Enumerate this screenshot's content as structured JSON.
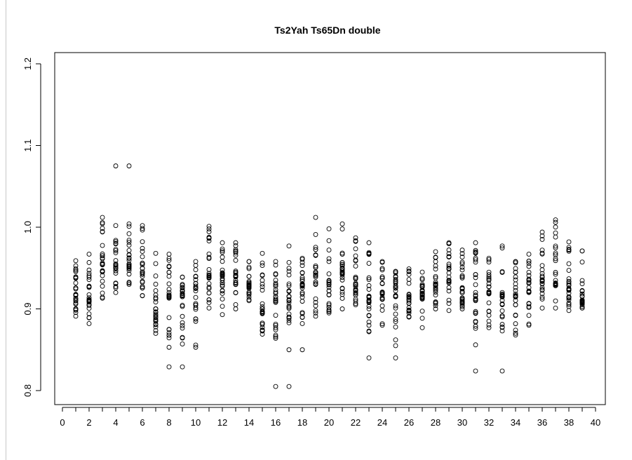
{
  "chart_data": {
    "type": "scatter",
    "title": "Ts2Yah Ts65Dn double",
    "xlabel": "",
    "ylabel": "",
    "xlim": [
      0,
      40
    ],
    "ylim": [
      0.8,
      1.2
    ],
    "x_ticks": [
      0,
      2,
      4,
      6,
      8,
      10,
      12,
      14,
      16,
      18,
      20,
      22,
      24,
      26,
      28,
      30,
      32,
      34,
      36,
      38,
      40
    ],
    "y_ticks": [
      0.8,
      0.9,
      1.0,
      1.1,
      1.2
    ],
    "y_tick_labels": [
      "0.8",
      "0.9",
      "1.0",
      "1.1",
      "1.2"
    ],
    "marker": "open-circle",
    "grid": false,
    "legend": "none",
    "groups": [
      {
        "x": 1,
        "min": 0.891,
        "max": 0.959,
        "center": 0.917,
        "outliers": []
      },
      {
        "x": 2,
        "min": 0.882,
        "max": 0.967,
        "center": 0.91,
        "outliers": []
      },
      {
        "x": 3,
        "min": 0.913,
        "max": 1.012,
        "center": 0.955,
        "outliers": []
      },
      {
        "x": 4,
        "min": 0.92,
        "max": 1.002,
        "center": 0.95,
        "outliers": [
          1.075
        ]
      },
      {
        "x": 5,
        "min": 0.93,
        "max": 1.004,
        "center": 0.955,
        "outliers": [
          1.075
        ]
      },
      {
        "x": 6,
        "min": 0.916,
        "max": 1.002,
        "center": 0.945,
        "outliers": []
      },
      {
        "x": 7,
        "min": 0.87,
        "max": 0.968,
        "center": 0.9,
        "outliers": []
      },
      {
        "x": 8,
        "min": 0.853,
        "max": 0.967,
        "center": 0.915,
        "outliers": [
          0.829
        ]
      },
      {
        "x": 9,
        "min": 0.857,
        "max": 0.939,
        "center": 0.915,
        "outliers": [
          0.829
        ]
      },
      {
        "x": 10,
        "min": 0.853,
        "max": 0.958,
        "center": 0.925,
        "outliers": []
      },
      {
        "x": 11,
        "min": 0.901,
        "max": 1.001,
        "center": 0.94,
        "outliers": []
      },
      {
        "x": 12,
        "min": 0.893,
        "max": 0.981,
        "center": 0.935,
        "outliers": []
      },
      {
        "x": 13,
        "min": 0.9,
        "max": 0.981,
        "center": 0.94,
        "outliers": []
      },
      {
        "x": 14,
        "min": 0.91,
        "max": 0.958,
        "center": 0.93,
        "outliers": []
      },
      {
        "x": 15,
        "min": 0.869,
        "max": 0.968,
        "center": 0.9,
        "outliers": []
      },
      {
        "x": 16,
        "min": 0.864,
        "max": 0.958,
        "center": 0.915,
        "outliers": [
          0.805
        ]
      },
      {
        "x": 17,
        "min": 0.883,
        "max": 0.977,
        "center": 0.915,
        "outliers": [
          0.85,
          0.805
        ]
      },
      {
        "x": 18,
        "min": 0.882,
        "max": 0.962,
        "center": 0.93,
        "outliers": [
          0.85
        ]
      },
      {
        "x": 19,
        "min": 0.891,
        "max": 1.012,
        "center": 0.945,
        "outliers": []
      },
      {
        "x": 20,
        "min": 0.895,
        "max": 0.998,
        "center": 0.93,
        "outliers": []
      },
      {
        "x": 21,
        "min": 0.9,
        "max": 1.004,
        "center": 0.945,
        "outliers": []
      },
      {
        "x": 22,
        "min": 0.905,
        "max": 0.987,
        "center": 0.93,
        "outliers": []
      },
      {
        "x": 23,
        "min": 0.872,
        "max": 0.981,
        "center": 0.91,
        "outliers": [
          0.84
        ]
      },
      {
        "x": 24,
        "min": 0.88,
        "max": 0.958,
        "center": 0.92,
        "outliers": []
      },
      {
        "x": 25,
        "min": 0.855,
        "max": 0.946,
        "center": 0.915,
        "outliers": [
          0.84
        ]
      },
      {
        "x": 26,
        "min": 0.89,
        "max": 0.949,
        "center": 0.915,
        "outliers": []
      },
      {
        "x": 27,
        "min": 0.877,
        "max": 0.945,
        "center": 0.915,
        "outliers": []
      },
      {
        "x": 28,
        "min": 0.9,
        "max": 0.97,
        "center": 0.93,
        "outliers": []
      },
      {
        "x": 29,
        "min": 0.898,
        "max": 0.981,
        "center": 0.935,
        "outliers": []
      },
      {
        "x": 30,
        "min": 0.9,
        "max": 0.972,
        "center": 0.925,
        "outliers": []
      },
      {
        "x": 31,
        "min": 0.856,
        "max": 0.981,
        "center": 0.91,
        "outliers": [
          0.824
        ]
      },
      {
        "x": 32,
        "min": 0.877,
        "max": 0.962,
        "center": 0.92,
        "outliers": []
      },
      {
        "x": 33,
        "min": 0.873,
        "max": 0.977,
        "center": 0.915,
        "outliers": [
          0.824
        ]
      },
      {
        "x": 34,
        "min": 0.868,
        "max": 0.958,
        "center": 0.915,
        "outliers": []
      },
      {
        "x": 35,
        "min": 0.88,
        "max": 0.967,
        "center": 0.92,
        "outliers": []
      },
      {
        "x": 36,
        "min": 0.901,
        "max": 0.994,
        "center": 0.935,
        "outliers": []
      },
      {
        "x": 37,
        "min": 0.901,
        "max": 1.009,
        "center": 0.93,
        "outliers": []
      },
      {
        "x": 38,
        "min": 0.898,
        "max": 0.982,
        "center": 0.925,
        "outliers": []
      },
      {
        "x": 39,
        "min": 0.901,
        "max": 0.971,
        "center": 0.91,
        "outliers": []
      }
    ]
  }
}
